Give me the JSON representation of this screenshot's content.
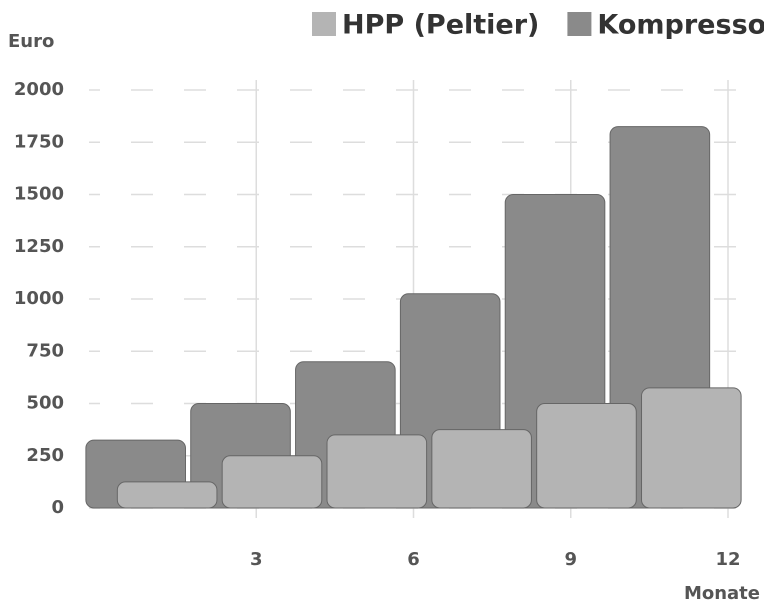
{
  "chart_data": {
    "type": "bar",
    "x_label": "Monate",
    "y_label": "Euro",
    "x": [
      1,
      3,
      5,
      7,
      9,
      11
    ],
    "series": [
      {
        "name": "Kompressor",
        "color": "#8a8a8a",
        "values": [
          325,
          500,
          700,
          1025,
          1500,
          1825
        ]
      },
      {
        "name": "HPP (Peltier)",
        "color": "#b4b4b4",
        "values": [
          125,
          250,
          350,
          375,
          500,
          575
        ]
      }
    ],
    "legend_order": [
      "HPP (Peltier)",
      "Kompressor"
    ],
    "xlim": [
      0,
      12.7
    ],
    "xticks": [
      3,
      6,
      9,
      12
    ],
    "ylim": [
      0,
      2000
    ],
    "yticks": [
      0,
      250,
      500,
      750,
      1000,
      1250,
      1500,
      1750,
      2000
    ],
    "grid": true
  }
}
